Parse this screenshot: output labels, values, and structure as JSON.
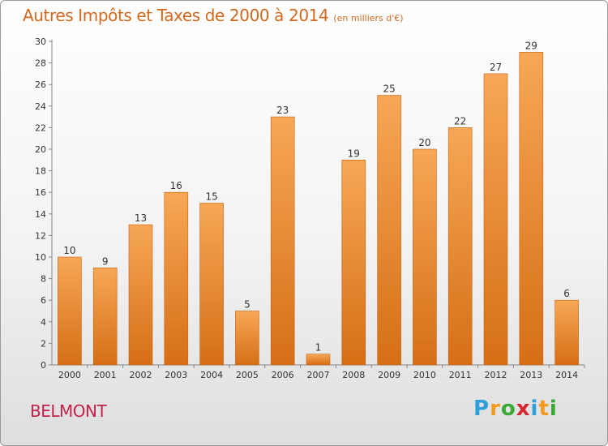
{
  "header": {
    "title": "Autres Impôts et Taxes de 2000 à 2014",
    "unit": "(en milliers d'€)"
  },
  "footer": {
    "place": "BELMONT",
    "logo_letters": [
      "P",
      "r",
      "o",
      "x",
      "i",
      "t",
      "i"
    ],
    "logo_colors": [
      "#2e9fd8",
      "#f39a1e",
      "#3aa935",
      "#d8262e",
      "#2e9fd8",
      "#f39a1e",
      "#3aa935"
    ]
  },
  "colors": {
    "bar_top": "#f7a756",
    "bar_bottom": "#d56f16",
    "title": "#d2691e",
    "place": "#c3224a"
  },
  "chart_data": {
    "type": "bar",
    "title": "Autres Impôts et Taxes de 2000 à 2014",
    "subtitle": "(en milliers d'€)",
    "categories": [
      "2000",
      "2001",
      "2002",
      "2003",
      "2004",
      "2005",
      "2006",
      "2007",
      "2008",
      "2009",
      "2010",
      "2011",
      "2012",
      "2013",
      "2014"
    ],
    "values": [
      10,
      9,
      13,
      16,
      15,
      5,
      23,
      1,
      19,
      25,
      20,
      22,
      27,
      29,
      6
    ],
    "ylim": [
      0,
      30
    ],
    "yticks": [
      0,
      2,
      4,
      6,
      8,
      10,
      12,
      14,
      16,
      18,
      20,
      22,
      24,
      26,
      28,
      30
    ],
    "grid": false,
    "legend": "none"
  }
}
